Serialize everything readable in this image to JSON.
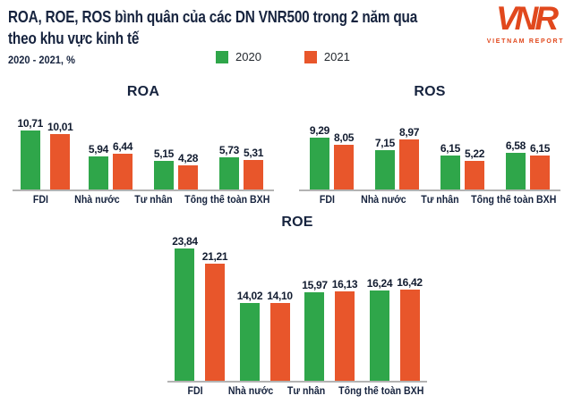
{
  "header": {
    "title_line1": "ROA, ROE, ROS bình quân của các DN VNR500 trong 2 năm qua",
    "title_line2": "theo khu vực kinh tế",
    "subtitle": "2020 - 2021, %"
  },
  "legend": {
    "position": "top-center",
    "items": [
      {
        "label": "2020",
        "color": "#2fa64a"
      },
      {
        "label": "2021",
        "color": "#e8562b"
      }
    ]
  },
  "logo": {
    "text": "VNR",
    "caption": "VIETNAM REPORT",
    "color": "#e1481d"
  },
  "colors": {
    "navy": "#16233e",
    "label": "#121c30",
    "axis": "#b3b3b3",
    "green_2020": "#2fa64a",
    "orange_2021": "#e8562b",
    "logo": "#e1481d"
  },
  "chart_data": [
    {
      "type": "bar",
      "title": "ROA",
      "unit": "%",
      "categories": [
        "FDI",
        "Nhà nước",
        "Tư nhân",
        "Tổng thể toàn BXH"
      ],
      "series": [
        {
          "name": "2020",
          "color": "#2fa64a",
          "values": [
            10.71,
            5.94,
            5.15,
            5.73
          ],
          "labels": [
            "10,71",
            "5,94",
            "5,15",
            "5,73"
          ]
        },
        {
          "name": "2021",
          "color": "#e8562b",
          "values": [
            10.01,
            6.44,
            4.28,
            5.31
          ],
          "labels": [
            "10,01",
            "6,44",
            "4,28",
            "5,31"
          ]
        }
      ],
      "value_labels_shown": true,
      "y_axis_visible": false,
      "grid": false
    },
    {
      "type": "bar",
      "title": "ROS",
      "unit": "%",
      "categories": [
        "FDI",
        "Nhà nước",
        "Tư nhân",
        "Tổng thể toàn BXH"
      ],
      "series": [
        {
          "name": "2020",
          "color": "#2fa64a",
          "values": [
            9.29,
            7.15,
            6.15,
            6.58
          ],
          "labels": [
            "9,29",
            "7,15",
            "6,15",
            "6,58"
          ]
        },
        {
          "name": "2021",
          "color": "#e8562b",
          "values": [
            8.05,
            8.97,
            5.22,
            6.15
          ],
          "labels": [
            "8,05",
            "8,97",
            "5,22",
            "6,15"
          ]
        }
      ],
      "value_labels_shown": true,
      "y_axis_visible": false,
      "grid": false
    },
    {
      "type": "bar",
      "title": "ROE",
      "unit": "%",
      "categories": [
        "FDI",
        "Nhà nước",
        "Tư nhân",
        "Tổng thể toàn BXH"
      ],
      "series": [
        {
          "name": "2020",
          "color": "#2fa64a",
          "values": [
            23.84,
            14.02,
            15.97,
            16.24
          ],
          "labels": [
            "23,84",
            "14,02",
            "15,97",
            "16,24"
          ]
        },
        {
          "name": "2021",
          "color": "#e8562b",
          "values": [
            21.21,
            14.1,
            16.13,
            16.42
          ],
          "labels": [
            "21,21",
            "14,10",
            "16,13",
            "16,42"
          ]
        }
      ],
      "value_labels_shown": true,
      "y_axis_visible": false,
      "grid": false
    }
  ]
}
